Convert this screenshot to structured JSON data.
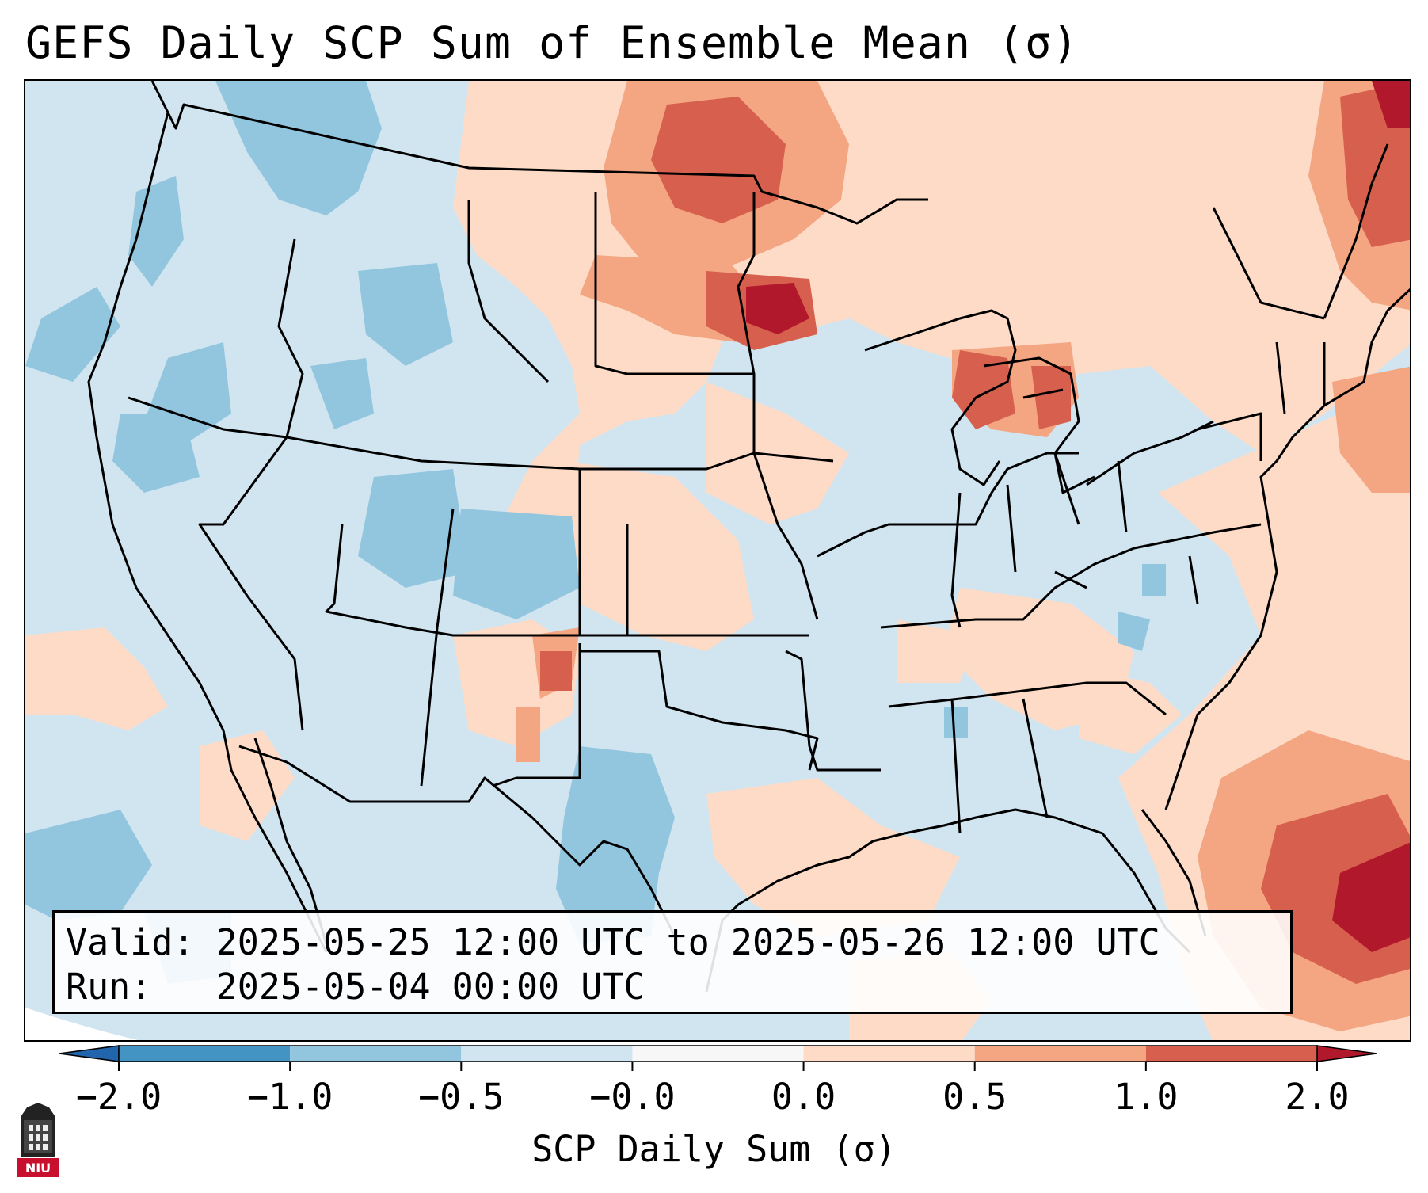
{
  "title": "GEFS Daily SCP Sum of Ensemble Mean (σ)",
  "info": {
    "valid_label": "Valid:",
    "valid_value": "2025-05-25 12:00 UTC to 2025-05-26 12:00 UTC",
    "run_label": "Run:",
    "run_value": "2025-05-04 00:00 UTC"
  },
  "colorbar": {
    "label": "SCP Daily Sum (σ)",
    "ticks": [
      "−2.0",
      "−1.0",
      "−0.5",
      "−0.0",
      "0.0",
      "0.5",
      "1.0",
      "2.0"
    ],
    "bin_colors": [
      "#4393c3",
      "#92c5de",
      "#d1e5f0",
      "#f7f7f7",
      "#fddbc7",
      "#f4a582",
      "#d6604d"
    ],
    "extend_low_color": "#2166ac",
    "extend_high_color": "#b2182b"
  },
  "logo": {
    "text": "NIU",
    "icon": "niu-university-logo-icon"
  }
}
